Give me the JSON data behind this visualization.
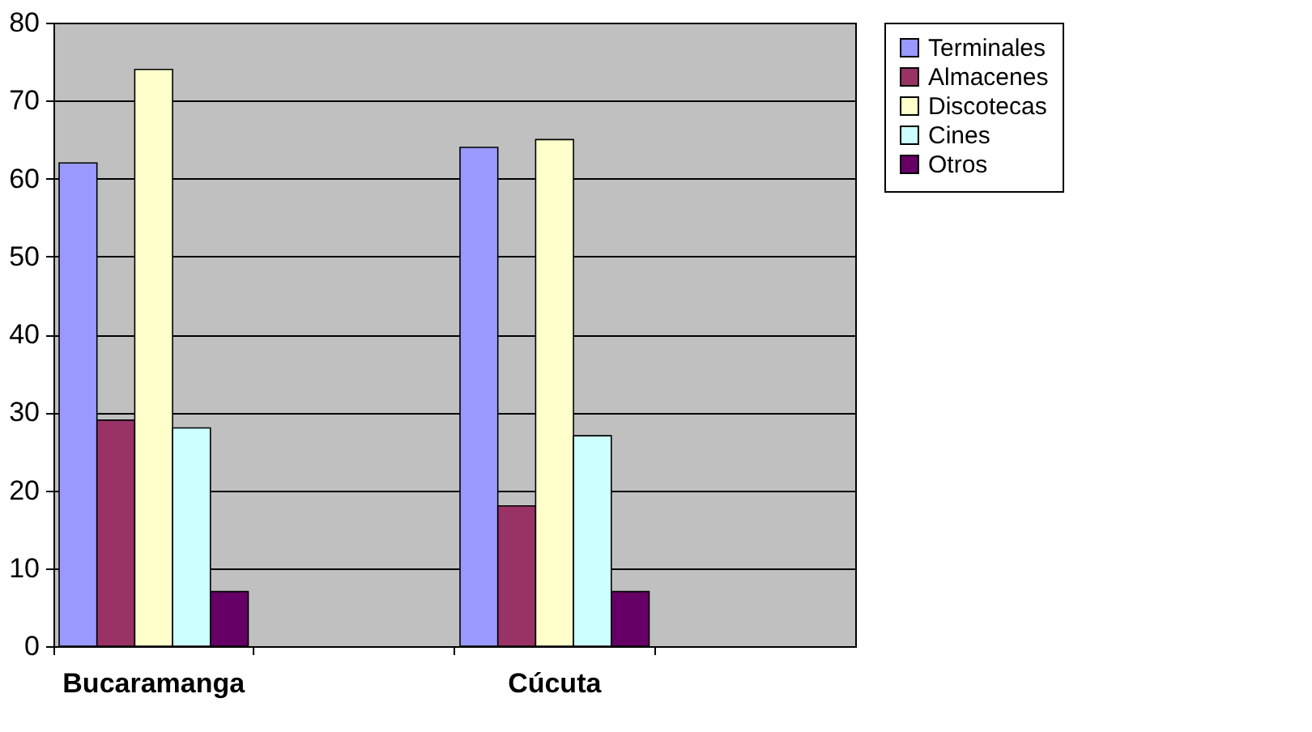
{
  "chart_data": {
    "type": "bar",
    "categories": [
      "Bucaramanga",
      null,
      "Cúcuta",
      null
    ],
    "series": [
      {
        "name": "Terminales",
        "color": "#9999ff",
        "values": [
          62,
          null,
          64,
          null
        ]
      },
      {
        "name": "Almacenes",
        "color": "#993366",
        "values": [
          29,
          null,
          18,
          null
        ]
      },
      {
        "name": "Discotecas",
        "color": "#ffffcc",
        "values": [
          74,
          null,
          65,
          null
        ]
      },
      {
        "name": "Cines",
        "color": "#ccffff",
        "values": [
          28,
          null,
          27,
          null
        ]
      },
      {
        "name": "Otros",
        "color": "#660066",
        "values": [
          7,
          null,
          7,
          null
        ]
      }
    ],
    "ylim": [
      0,
      80
    ],
    "yticks": [
      0,
      10,
      20,
      30,
      40,
      50,
      60,
      70,
      80
    ],
    "grid": "y",
    "legend": "right"
  }
}
